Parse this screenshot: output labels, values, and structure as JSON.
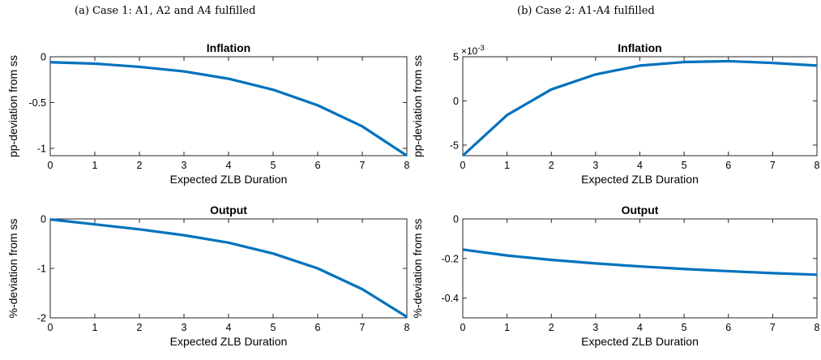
{
  "captions": {
    "left": "(a) Case 1: A1, A2 and A4 fulfilled",
    "right": "(b) Case 2: A1-A4 fulfilled"
  },
  "colors": {
    "line": "#0072BD",
    "axis": "#262626"
  },
  "chart_data": [
    {
      "type": "line",
      "title": "Inflation",
      "xlabel": "Expected ZLB Duration",
      "ylabel": "pp-deviation from ss",
      "x": [
        0,
        1,
        2,
        3,
        4,
        5,
        6,
        7,
        8
      ],
      "series": [
        {
          "values": [
            -0.06,
            -0.075,
            -0.11,
            -0.16,
            -0.24,
            -0.36,
            -0.53,
            -0.76,
            -1.08
          ]
        }
      ],
      "xlim": [
        0,
        8
      ],
      "ylim": [
        -1.08,
        0
      ],
      "xticks": [
        0,
        1,
        2,
        3,
        4,
        5,
        6,
        7,
        8
      ],
      "yticks": [
        0,
        -0.5,
        -1
      ],
      "yticklabels": [
        "0",
        "-0.5",
        "-1"
      ]
    },
    {
      "type": "line",
      "title": "Inflation",
      "xlabel": "Expected ZLB Duration",
      "ylabel": "pp-deviation from ss",
      "exponent": "×10",
      "exponent_power": "-3",
      "x": [
        0,
        1,
        2,
        3,
        4,
        5,
        6,
        7,
        8
      ],
      "series": [
        {
          "values": [
            -6.2,
            -1.6,
            1.3,
            3.0,
            4.0,
            4.4,
            4.5,
            4.3,
            4.0
          ]
        }
      ],
      "xlim": [
        0,
        8
      ],
      "ylim": [
        -6.2,
        5
      ],
      "xticks": [
        0,
        1,
        2,
        3,
        4,
        5,
        6,
        7,
        8
      ],
      "yticks": [
        5,
        0,
        -5
      ],
      "yticklabels": [
        "5",
        "0",
        "-5"
      ]
    },
    {
      "type": "line",
      "title": "Output",
      "xlabel": "Expected ZLB Duration",
      "ylabel": "%-deviation from ss",
      "x": [
        0,
        1,
        2,
        3,
        4,
        5,
        6,
        7,
        8
      ],
      "series": [
        {
          "values": [
            -0.01,
            -0.11,
            -0.21,
            -0.33,
            -0.48,
            -0.7,
            -1.0,
            -1.42,
            -1.98
          ]
        }
      ],
      "xlim": [
        0,
        8
      ],
      "ylim": [
        -2,
        0
      ],
      "xticks": [
        0,
        1,
        2,
        3,
        4,
        5,
        6,
        7,
        8
      ],
      "yticks": [
        0,
        -1,
        -2
      ],
      "yticklabels": [
        "0",
        "-1",
        "-2"
      ]
    },
    {
      "type": "line",
      "title": "Output",
      "xlabel": "Expected ZLB Duration",
      "ylabel": "%-deviation from ss",
      "x": [
        0,
        1,
        2,
        3,
        4,
        5,
        6,
        7,
        8
      ],
      "series": [
        {
          "values": [
            -0.155,
            -0.185,
            -0.207,
            -0.225,
            -0.24,
            -0.253,
            -0.264,
            -0.274,
            -0.282
          ]
        }
      ],
      "xlim": [
        0,
        8
      ],
      "ylim": [
        -0.5,
        0
      ],
      "xticks": [
        0,
        1,
        2,
        3,
        4,
        5,
        6,
        7,
        8
      ],
      "yticks": [
        0,
        -0.2,
        -0.4
      ],
      "yticklabels": [
        "0",
        "-0.2",
        "-0.4"
      ]
    }
  ]
}
